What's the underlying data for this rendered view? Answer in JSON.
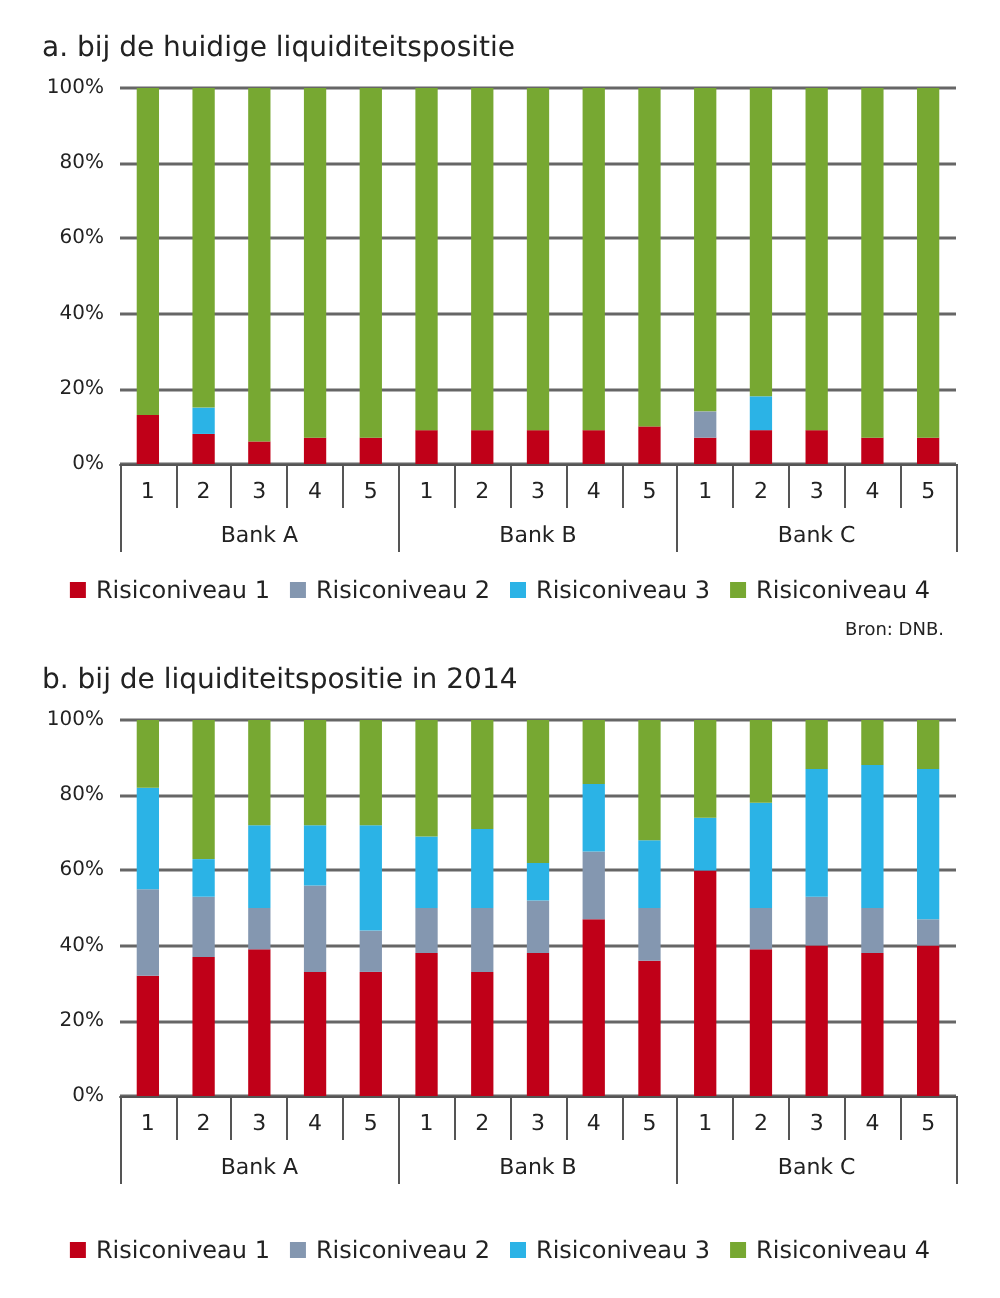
{
  "chart_data": [
    {
      "type": "bar",
      "title": "a. bij de huidige liquiditeitspositie",
      "stacked": true,
      "categories": [
        "1",
        "2",
        "3",
        "4",
        "5",
        "1",
        "2",
        "3",
        "4",
        "5",
        "1",
        "2",
        "3",
        "4",
        "5"
      ],
      "series": [
        {
          "name": "Risiconiveau 1",
          "color": "#c00018",
          "values": [
            13,
            8,
            6,
            7,
            7,
            9,
            9,
            9,
            9,
            10,
            7,
            9,
            9,
            7,
            7
          ]
        },
        {
          "name": "Risiconiveau 2",
          "color": "#8497b0",
          "values": [
            0,
            0,
            0,
            0,
            0,
            0,
            0,
            0,
            0,
            0,
            7,
            0,
            0,
            0,
            0
          ]
        },
        {
          "name": "Risiconiveau 3",
          "color": "#2bb3e6",
          "values": [
            0,
            7,
            0,
            0,
            0,
            0,
            0,
            0,
            0,
            0,
            0,
            9,
            0,
            0,
            0
          ]
        },
        {
          "name": "Risiconiveau 4",
          "color": "#77a832",
          "values": [
            87,
            85,
            94,
            93,
            93,
            91,
            91,
            91,
            91,
            90,
            86,
            82,
            91,
            93,
            93
          ]
        }
      ],
      "ylim": [
        0,
        100
      ],
      "yticks": [
        {
          "value": 0,
          "label": "0%"
        },
        {
          "value": 20,
          "label": "20%"
        },
        {
          "value": 40,
          "label": "40%"
        },
        {
          "value": 60,
          "label": "60%"
        },
        {
          "value": 80,
          "label": "80%"
        },
        {
          "value": 100,
          "label": "100%"
        }
      ],
      "grid": "y",
      "legend": "bottom",
      "annotations": [
        "Bank A",
        "Bank B",
        "Bank C",
        "Bron: DNB."
      ]
    },
    {
      "type": "bar",
      "title": "b. bij de liquiditeitspositie in 2014",
      "stacked": true,
      "categories": [
        "1",
        "2",
        "3",
        "4",
        "5",
        "1",
        "2",
        "3",
        "4",
        "5",
        "1",
        "2",
        "3",
        "4",
        "5"
      ],
      "series": [
        {
          "name": "Risiconiveau 1",
          "color": "#c00018",
          "values": [
            32,
            37,
            39,
            33,
            33,
            38,
            33,
            38,
            47,
            36,
            60,
            39,
            40,
            38,
            40
          ]
        },
        {
          "name": "Risiconiveau 2",
          "color": "#8497b0",
          "values": [
            23,
            16,
            11,
            23,
            11,
            12,
            17,
            14,
            18,
            14,
            0,
            11,
            13,
            12,
            7
          ]
        },
        {
          "name": "Risiconiveau 3",
          "color": "#2bb3e6",
          "values": [
            27,
            10,
            22,
            16,
            28,
            19,
            21,
            10,
            18,
            18,
            14,
            28,
            34,
            38,
            40
          ]
        },
        {
          "name": "Risiconiveau 4",
          "color": "#77a832",
          "values": [
            18,
            37,
            28,
            28,
            28,
            31,
            29,
            38,
            17,
            32,
            26,
            22,
            13,
            12,
            13
          ]
        }
      ],
      "ylim": [
        0,
        100
      ],
      "yticks": [
        {
          "value": 0,
          "label": "0%"
        },
        {
          "value": 20,
          "label": "20%"
        },
        {
          "value": 40,
          "label": "40%"
        },
        {
          "value": 60,
          "label": "60%"
        },
        {
          "value": 80,
          "label": "80%"
        },
        {
          "value": 100,
          "label": "100%"
        }
      ],
      "grid": "y",
      "legend": "bottom",
      "annotations": [
        "Bank A",
        "Bank B",
        "Bank C"
      ]
    }
  ]
}
